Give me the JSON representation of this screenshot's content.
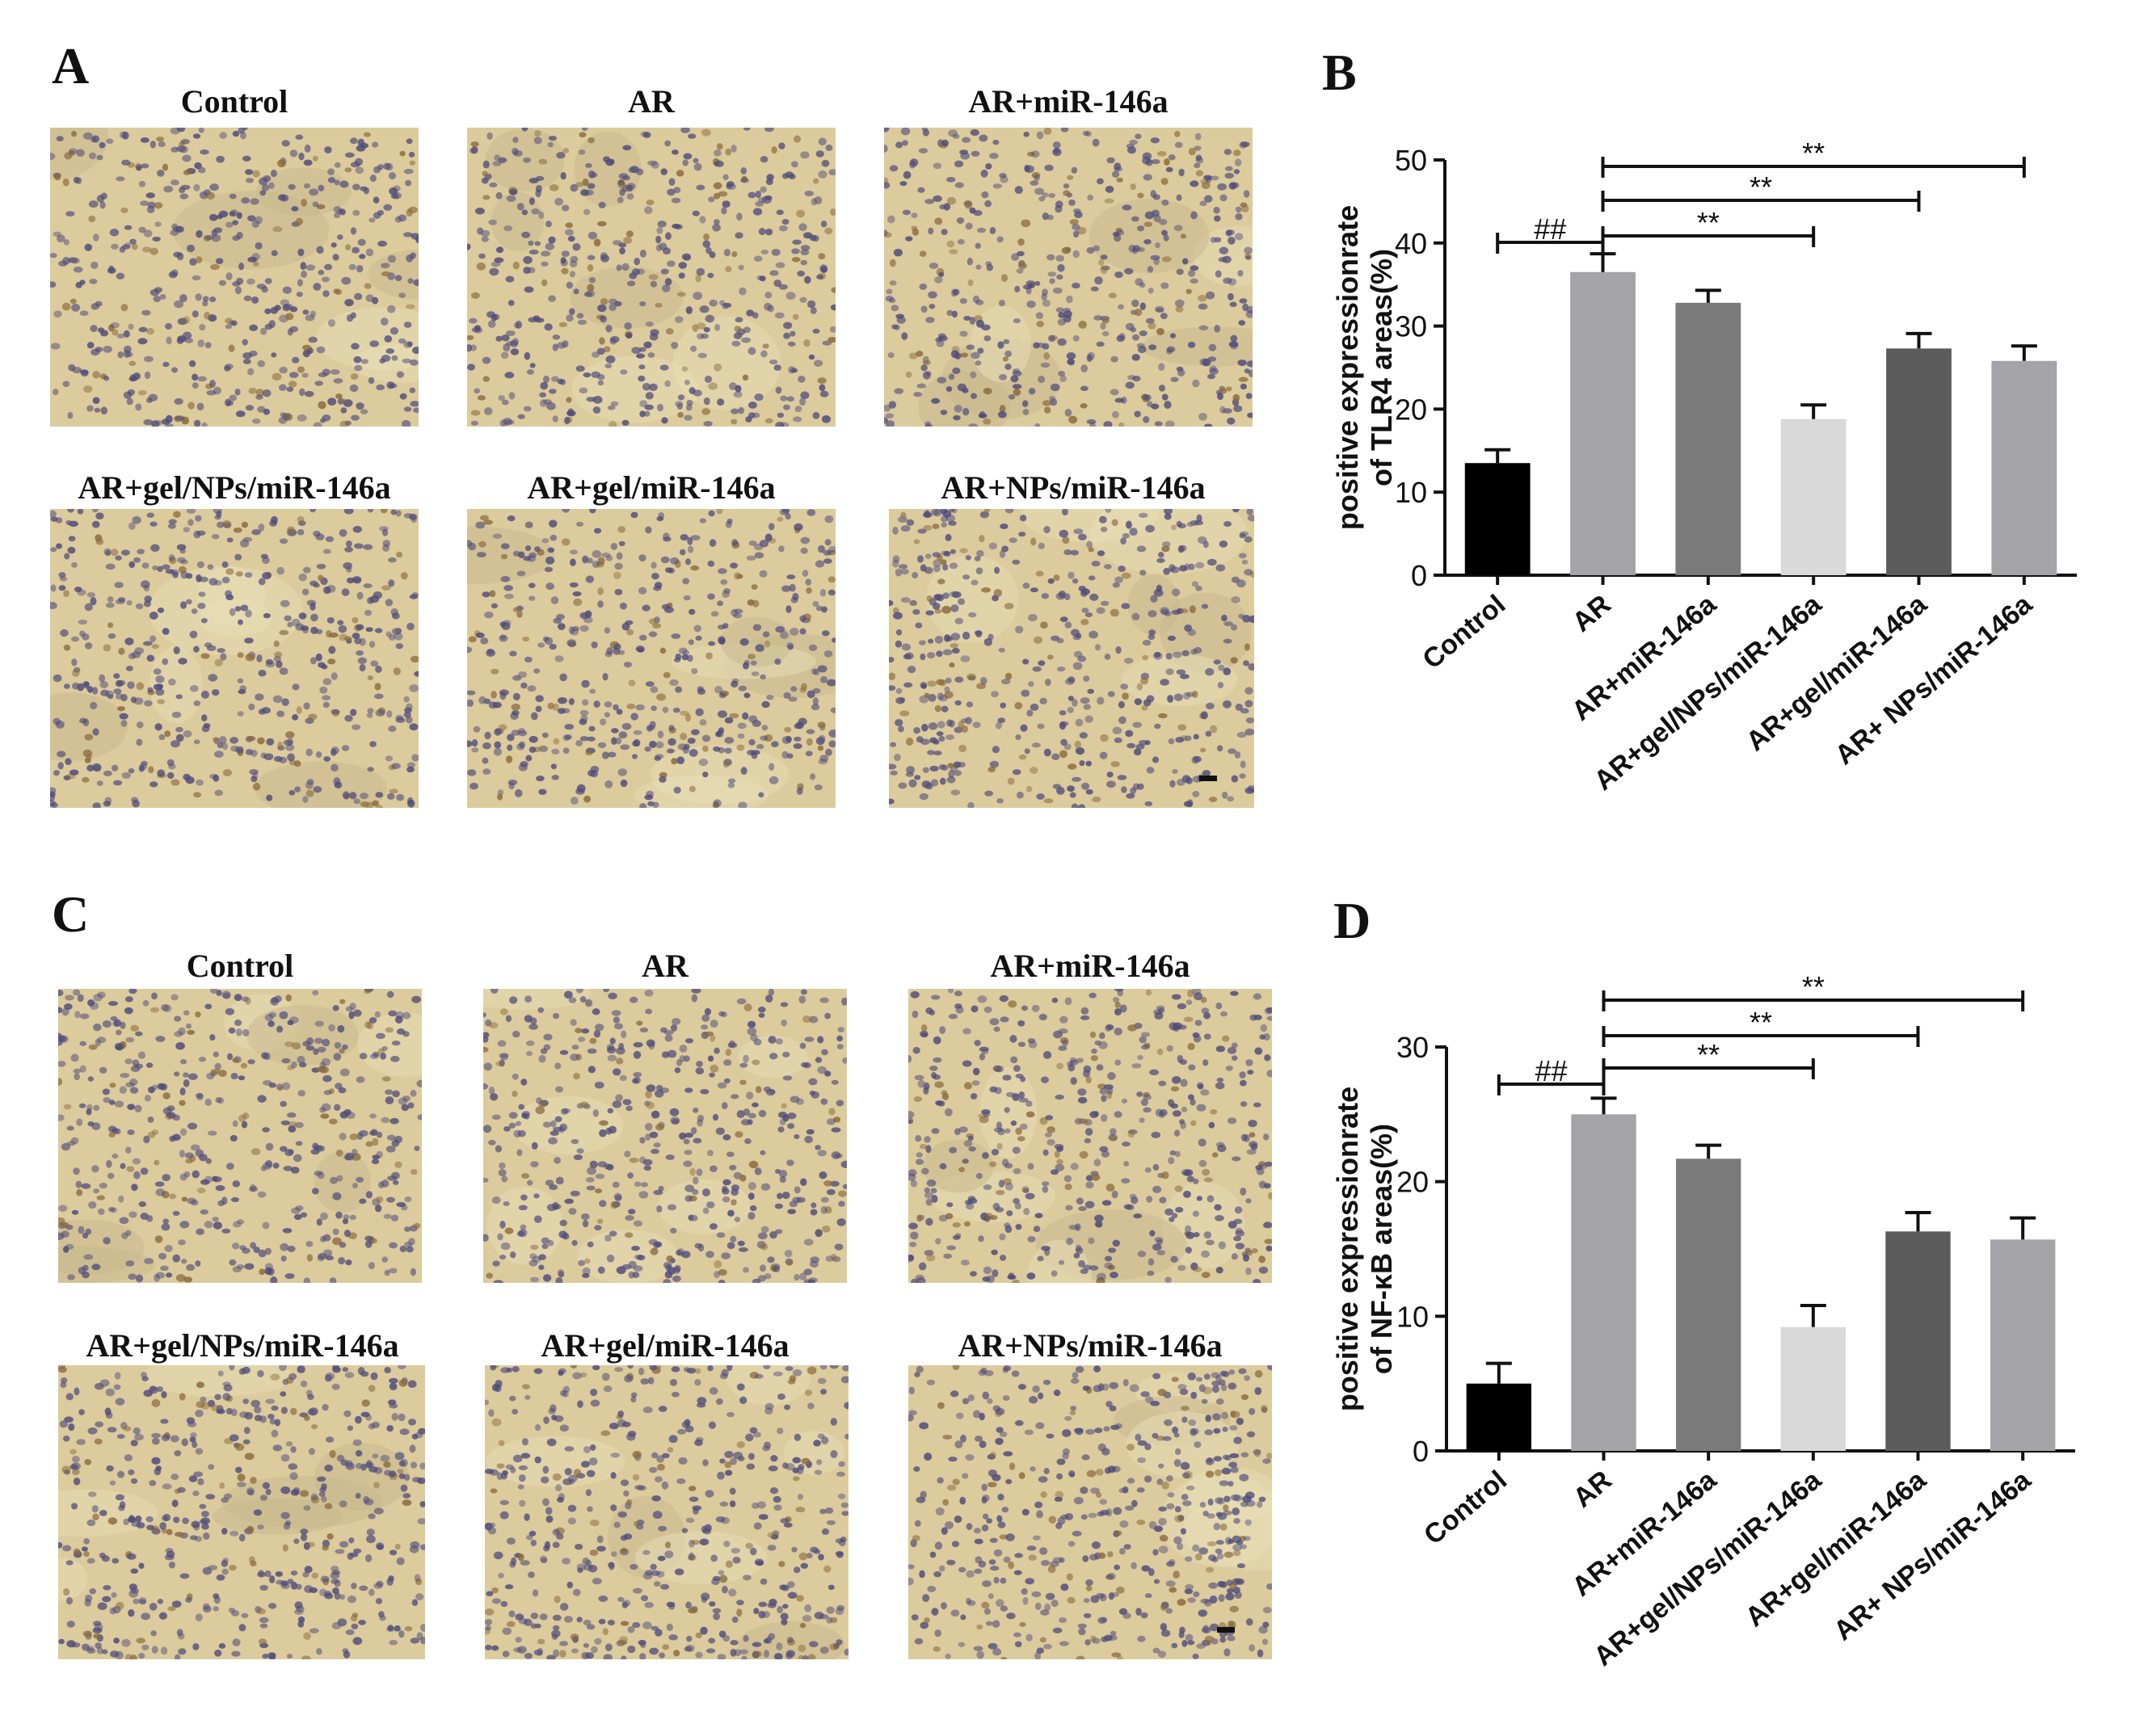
{
  "panels": {
    "a": "A",
    "b": "B",
    "c": "C",
    "d": "D"
  },
  "micrographs_top": {
    "labels": [
      "Control",
      "AR",
      "AR+miR-146a",
      "AR+gel/NPs/miR-146a",
      "AR+gel/miR-146a",
      "AR+NPs/miR-146a"
    ]
  },
  "micrographs_bottom": {
    "labels": [
      "Control",
      "AR",
      "AR+miR-146a",
      "AR+gel/NPs/miR-146a",
      "AR+gel/miR-146a",
      "AR+NPs/miR-146a"
    ]
  },
  "colors": {
    "tissue_background": "#dccb9c",
    "nuclei": "#4e4b7a",
    "scale_bar": "#111111",
    "bar_colors": [
      "#000000",
      "#a3a3a8",
      "#7a7a7a",
      "#d9d9d9",
      "#5c5c5c",
      "#a3a3a8"
    ]
  },
  "chart_data": [
    {
      "type": "bar",
      "categories": [
        "Control",
        "AR",
        "AR+miR-146a",
        "AR+gel/NPs/miR-146a",
        "AR+gel/miR-146a",
        "AR+ NPs/miR-146a"
      ],
      "values": [
        13.5,
        36.5,
        32.8,
        18.8,
        27.3,
        25.8
      ],
      "errors": [
        1.6,
        2.2,
        1.5,
        1.7,
        1.8,
        1.8
      ],
      "ylabel": "positive expressionrate of TLR4 areas(%)",
      "ylim": [
        0,
        50
      ],
      "yticks": [
        0,
        10,
        20,
        30,
        40,
        50
      ],
      "grid": false,
      "annotations": [
        {
          "from": "Control",
          "to": "AR",
          "label": "##"
        },
        {
          "from": "AR",
          "to": "AR+gel/NPs/miR-146a",
          "label": "**"
        },
        {
          "from": "AR",
          "to": "AR+gel/miR-146a",
          "label": "**"
        },
        {
          "from": "AR",
          "to": "AR+ NPs/miR-146a",
          "label": "**"
        }
      ]
    },
    {
      "type": "bar",
      "categories": [
        "Control",
        "AR",
        "AR+miR-146a",
        "AR+gel/NPs/miR-146a",
        "AR+gel/miR-146a",
        "AR+ NPs/miR-146a"
      ],
      "values": [
        5.0,
        25.0,
        21.7,
        9.2,
        16.3,
        15.7
      ],
      "errors": [
        1.5,
        1.2,
        1.0,
        1.6,
        1.4,
        1.6
      ],
      "ylabel": "positive expressionrate of NF-κB areas(%)",
      "ylim": [
        0,
        30
      ],
      "yticks": [
        0,
        10,
        20,
        30
      ],
      "grid": false,
      "annotations": [
        {
          "from": "Control",
          "to": "AR",
          "label": "##"
        },
        {
          "from": "AR",
          "to": "AR+gel/NPs/miR-146a",
          "label": "**"
        },
        {
          "from": "AR",
          "to": "AR+gel/miR-146a",
          "label": "**"
        },
        {
          "from": "AR",
          "to": "AR+ NPs/miR-146a",
          "label": "**"
        }
      ]
    }
  ]
}
